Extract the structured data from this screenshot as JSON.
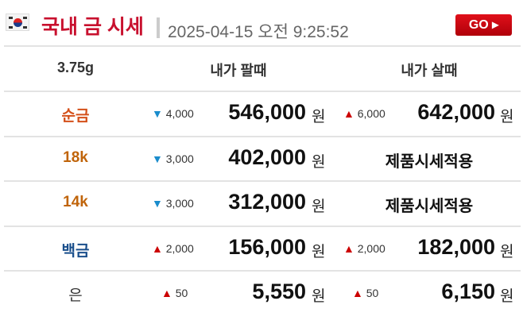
{
  "header": {
    "title": "국내 금 시세",
    "datetime": "2025-04-15 오전 9:25:52",
    "go_label": "GO ▸",
    "flag_icon": "korea-flag-icon"
  },
  "columns": [
    "3.75g",
    "내가 팔때",
    "내가 살때"
  ],
  "currency": "원",
  "colors": {
    "title": "#c8102e",
    "up": "#cc0000",
    "down": "#1a8ccc",
    "gold": "#d4501a",
    "karat": "#c0640a",
    "platinum": "#1a4f8c"
  },
  "rows": [
    {
      "label": "순금",
      "sell_dir": "down",
      "sell_change": "4,000",
      "sell_price": "546,000",
      "buy_dir": "up",
      "buy_change": "6,000",
      "buy_price": "642,000"
    },
    {
      "label": "18k",
      "sell_dir": "down",
      "sell_change": "3,000",
      "sell_price": "402,000",
      "buy_text": "제품시세적용"
    },
    {
      "label": "14k",
      "sell_dir": "down",
      "sell_change": "3,000",
      "sell_price": "312,000",
      "buy_text": "제품시세적용"
    },
    {
      "label": "백금",
      "sell_dir": "up",
      "sell_change": "2,000",
      "sell_price": "156,000",
      "buy_dir": "up",
      "buy_change": "2,000",
      "buy_price": "182,000"
    },
    {
      "label": "은",
      "sell_dir": "up",
      "sell_change": "50",
      "sell_price": "5,550",
      "buy_dir": "up",
      "buy_change": "50",
      "buy_price": "6,150"
    }
  ]
}
